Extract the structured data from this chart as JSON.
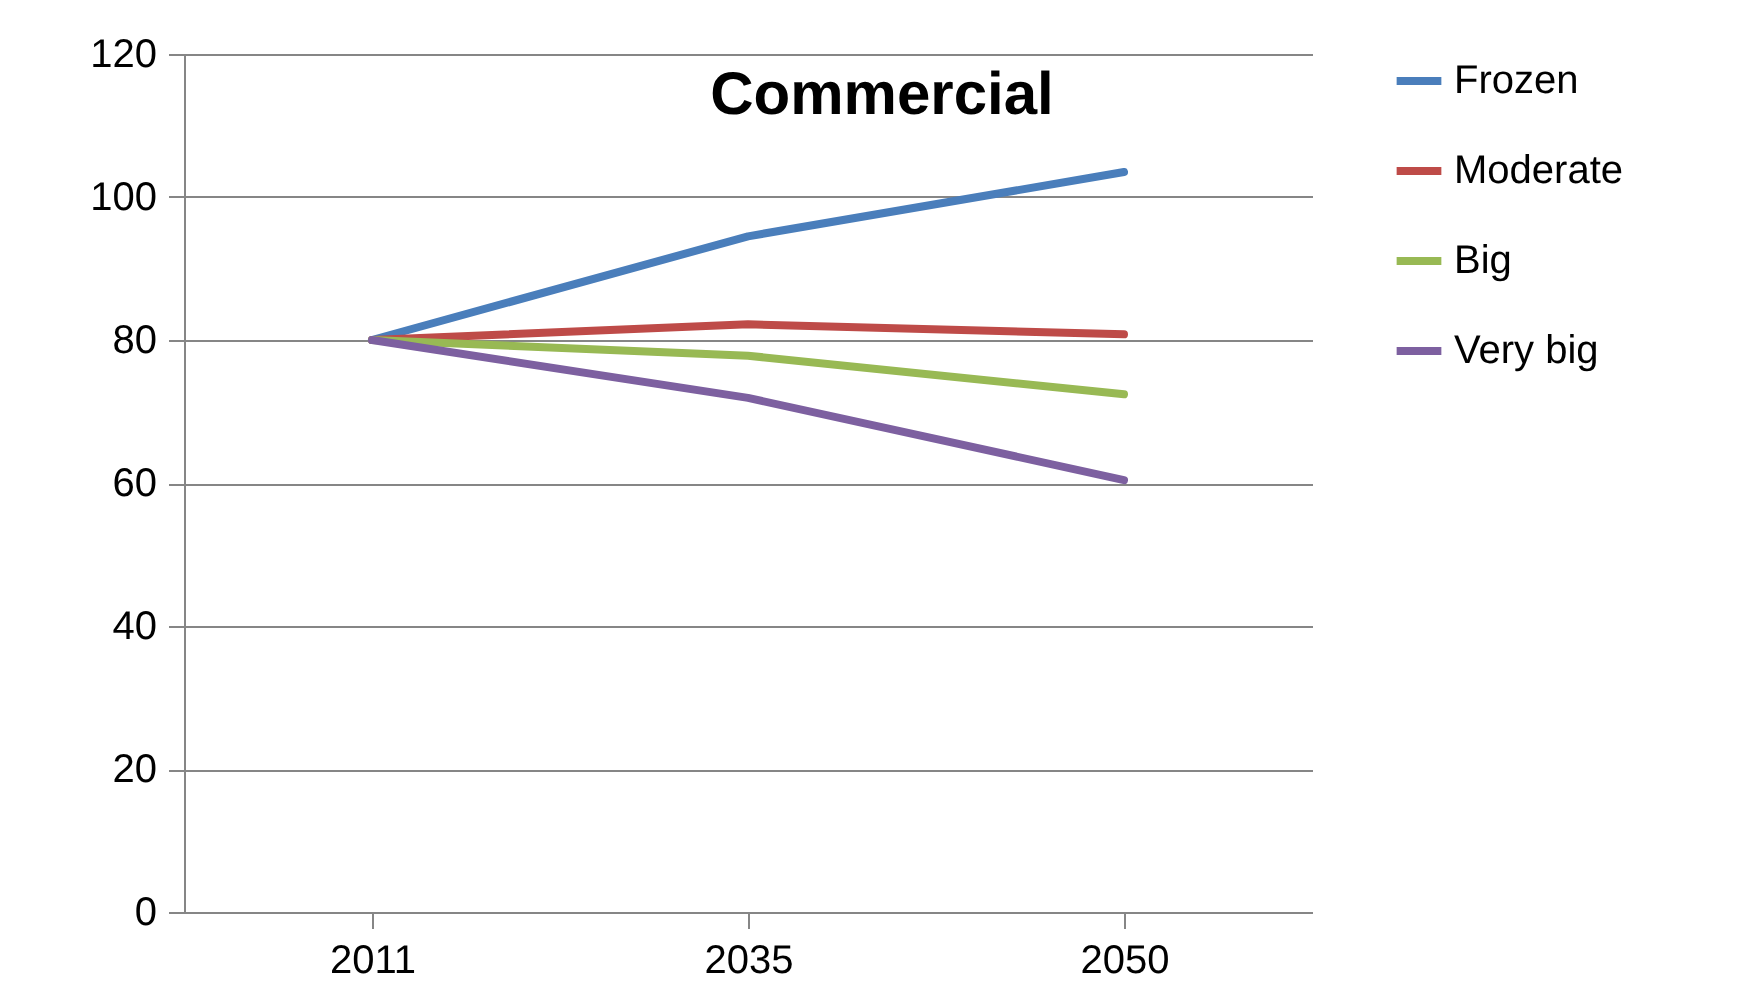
{
  "chart_data": {
    "type": "line",
    "title": "Commercial",
    "categories": [
      "2011",
      "2035",
      "2050"
    ],
    "series": [
      {
        "name": "Frozen",
        "color": "#4a7ebb",
        "values": [
          80,
          94.5,
          103.5
        ]
      },
      {
        "name": "Moderate",
        "color": "#be4b48",
        "values": [
          80,
          82.2,
          80.8
        ]
      },
      {
        "name": "Big",
        "color": "#98b954",
        "values": [
          80,
          77.8,
          72.4
        ]
      },
      {
        "name": "Very big",
        "color": "#7d60a0",
        "values": [
          80,
          71.9,
          60.4
        ]
      }
    ],
    "ylim": [
      0,
      120
    ],
    "yticks": [
      0,
      20,
      40,
      60,
      80,
      100,
      120
    ],
    "grid": "y",
    "legend": "right",
    "marker": "none",
    "line_style": "solid"
  }
}
